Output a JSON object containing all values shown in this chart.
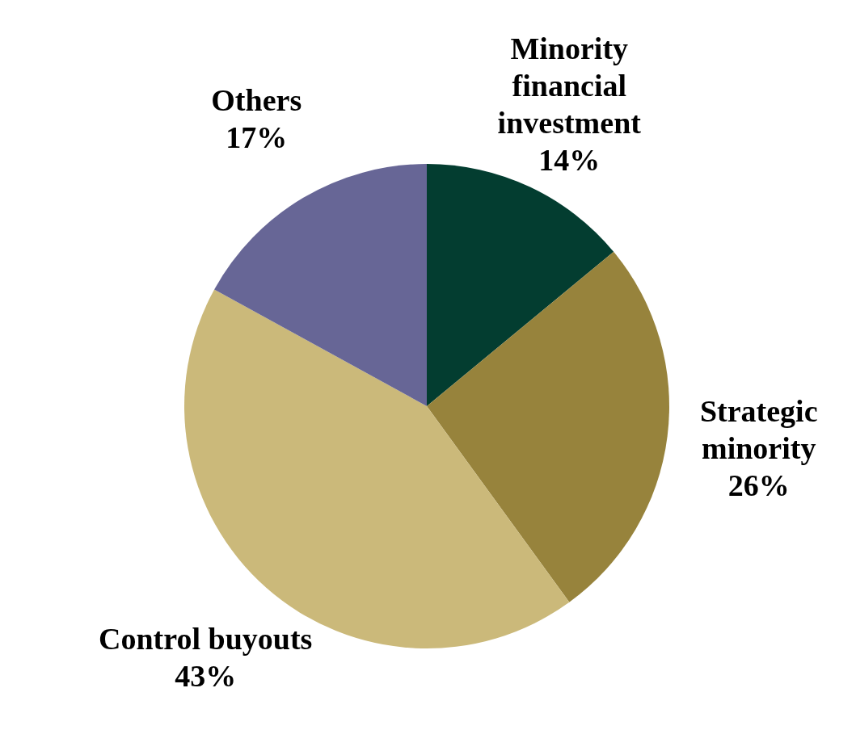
{
  "chart_data": {
    "type": "pie",
    "categories": [
      "Minority financial investment",
      "Strategic minority",
      "Control buyouts",
      "Others"
    ],
    "values": [
      14,
      26,
      43,
      17
    ],
    "colors": [
      "#033d30",
      "#97833c",
      "#cbb97a",
      "#676696"
    ],
    "value_labels": [
      "14%",
      "26%",
      "43%",
      "17%"
    ]
  }
}
